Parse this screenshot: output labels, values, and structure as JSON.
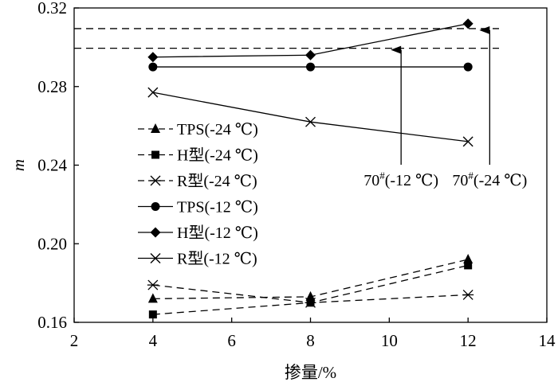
{
  "chart_data": {
    "type": "line",
    "xlabel": "掺量/%",
    "ylabel": "m",
    "xlim": [
      2,
      14
    ],
    "ylim": [
      0.16,
      0.32
    ],
    "xticks": [
      2,
      4,
      6,
      8,
      10,
      12,
      14
    ],
    "xtick_labels": [
      "2",
      "4",
      "6",
      "8",
      "10",
      "12",
      "14"
    ],
    "yticks": [
      0.16,
      0.2,
      0.24,
      0.28,
      0.32
    ],
    "ytick_labels": [
      "0.16",
      "0.20",
      "0.24",
      "0.28",
      "0.32"
    ],
    "grid": false,
    "legend_position": "left",
    "series": [
      {
        "name": "TPS(-24 ℃)",
        "marker": "triangle",
        "dashed": true,
        "x": [
          4,
          8,
          12
        ],
        "y": [
          0.172,
          0.173,
          0.192
        ]
      },
      {
        "name": "H型(-24 ℃)",
        "marker": "square",
        "dashed": true,
        "x": [
          4,
          8,
          12
        ],
        "y": [
          0.164,
          0.17,
          0.189
        ]
      },
      {
        "name": "R型(-24 ℃)",
        "marker": "asterisk",
        "dashed": true,
        "x": [
          4,
          8,
          12
        ],
        "y": [
          0.179,
          0.17,
          0.174
        ]
      },
      {
        "name": "TPS(-12 ℃)",
        "marker": "circle",
        "dashed": false,
        "x": [
          4,
          8,
          12
        ],
        "y": [
          0.29,
          0.29,
          0.29
        ]
      },
      {
        "name": "H型(-12 ℃)",
        "marker": "diamond",
        "dashed": false,
        "x": [
          4,
          8,
          12
        ],
        "y": [
          0.295,
          0.296,
          0.312
        ]
      },
      {
        "name": "R型(-12 ℃)",
        "marker": "x",
        "dashed": false,
        "x": [
          4,
          8,
          12
        ],
        "y": [
          0.277,
          0.262,
          0.252
        ]
      }
    ],
    "reference_lines": [
      {
        "y": 0.2995,
        "label_main": "70",
        "label_sup": "#",
        "label_rest": "(-12 ℃)",
        "arrow_x": 10.3
      },
      {
        "y": 0.3095,
        "label_main": "70",
        "label_sup": "#",
        "label_rest": "(-24 ℃)",
        "arrow_x": 12.55
      }
    ]
  }
}
